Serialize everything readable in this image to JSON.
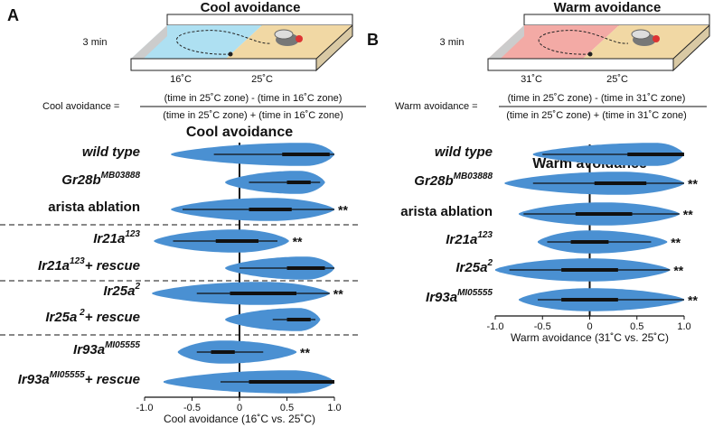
{
  "chart_data": [
    {
      "type": "violin",
      "panel": "A",
      "diagram": {
        "title": "Cool avoidance",
        "duration": "3 min",
        "zones": [
          "16˚C",
          "25˚C"
        ]
      },
      "formula": {
        "lhs": "Cool avoidance =",
        "numerator": "(time in 25˚C zone) - (time in 16˚C zone)",
        "denominator": "(time in 25˚C zone) + (time in 16˚C zone)"
      },
      "title": "Cool avoidance",
      "xlabel": "Cool avoidance (16˚C vs. 25˚C)",
      "categories": [
        [
          "wild type"
        ],
        [
          "Gr28b",
          "MB03888"
        ],
        [
          "arista ablation"
        ],
        [
          "Ir21a",
          "123"
        ],
        [
          "Ir21a",
          "123",
          "+ rescue"
        ],
        [
          "Ir25a",
          "2"
        ],
        [
          "Ir25a",
          " 2",
          "+ rescue"
        ],
        [
          "Ir93a",
          "MI05555"
        ],
        [
          "Ir93a",
          "MI05555",
          "+ rescue"
        ]
      ],
      "category_italic": [
        true,
        true,
        false,
        true,
        true,
        true,
        true,
        true,
        true
      ],
      "annotations": [
        null,
        null,
        "**",
        "**",
        null,
        "**",
        null,
        "**",
        null
      ],
      "color": "#4a90d2",
      "violins": [
        {
          "min": -0.72,
          "whisker_low": -0.27,
          "q1": 0.45,
          "q3": 0.95,
          "whisker_high": 1.0,
          "max": 1.0
        },
        {
          "min": -0.15,
          "whisker_low": 0.1,
          "q1": 0.5,
          "q3": 0.75,
          "whisker_high": 0.85,
          "max": 0.9
        },
        {
          "min": -0.72,
          "whisker_low": -0.6,
          "q1": 0.1,
          "q3": 0.55,
          "whisker_high": 1.0,
          "max": 1.0
        },
        {
          "min": -0.9,
          "whisker_low": -0.7,
          "q1": -0.25,
          "q3": 0.2,
          "whisker_high": 0.4,
          "max": 0.52
        },
        {
          "min": -0.15,
          "whisker_low": 0.0,
          "q1": 0.5,
          "q3": 0.9,
          "whisker_high": 1.0,
          "max": 1.0
        },
        {
          "min": -0.92,
          "whisker_low": -0.45,
          "q1": -0.1,
          "q3": 0.6,
          "whisker_high": 0.95,
          "max": 0.95
        },
        {
          "min": -0.15,
          "whisker_low": 0.35,
          "q1": 0.5,
          "q3": 0.75,
          "whisker_high": 0.8,
          "max": 0.85
        },
        {
          "min": -0.65,
          "whisker_low": -0.45,
          "q1": -0.3,
          "q3": -0.05,
          "whisker_high": 0.25,
          "max": 0.6
        },
        {
          "min": -0.8,
          "whisker_low": -0.2,
          "q1": 0.1,
          "q3": 1.0,
          "whisker_high": 1.0,
          "max": 1.0
        }
      ],
      "xlim": [
        -1,
        1
      ],
      "xticks": [
        {
          "value": -1,
          "label": "-1.0"
        },
        -0.5,
        0,
        0.5,
        {
          "value": 1,
          "label": "1.0"
        }
      ]
    },
    {
      "type": "violin",
      "panel": "B",
      "diagram": {
        "title": "Warm avoidance",
        "duration": "3 min",
        "zones": [
          "31˚C",
          "25˚C"
        ]
      },
      "formula": {
        "lhs": "Warm avoidance =",
        "numerator": "(time in 25˚C zone) - (time in 31˚C zone)",
        "denominator": "(time in 25˚C zone) + (time in 31˚C zone)"
      },
      "title": "Warm avoidance",
      "xlabel": "Warm avoidance (31˚C vs. 25˚C)",
      "categories": [
        [
          "wild type"
        ],
        [
          "Gr28b",
          "MB03888"
        ],
        [
          "arista ablation"
        ],
        [
          "Ir21a",
          "123"
        ],
        [
          "Ir25a",
          "2"
        ],
        [
          "Ir93a",
          "MI05555"
        ]
      ],
      "category_italic": [
        true,
        true,
        false,
        true,
        true,
        true
      ],
      "annotations": [
        null,
        "**",
        "**",
        "**",
        "**",
        "**"
      ],
      "color": "#4a90d2",
      "violins": [
        {
          "min": -0.6,
          "whisker_low": -0.5,
          "q1": 0.4,
          "q3": 1.0,
          "whisker_high": 1.0,
          "max": 1.0
        },
        {
          "min": -0.9,
          "whisker_low": -0.6,
          "q1": 0.05,
          "q3": 0.6,
          "whisker_high": 1.0,
          "max": 1.0
        },
        {
          "min": -0.75,
          "whisker_low": -0.7,
          "q1": -0.15,
          "q3": 0.45,
          "whisker_high": 0.95,
          "max": 0.95
        },
        {
          "min": -0.55,
          "whisker_low": -0.45,
          "q1": -0.2,
          "q3": 0.2,
          "whisker_high": 0.65,
          "max": 0.82
        },
        {
          "min": -1.0,
          "whisker_low": -0.85,
          "q1": -0.3,
          "q3": 0.3,
          "whisker_high": 0.85,
          "max": 0.85
        },
        {
          "min": -0.75,
          "whisker_low": -0.55,
          "q1": -0.3,
          "q3": 0.3,
          "whisker_high": 1.0,
          "max": 1.0
        }
      ],
      "xlim": [
        -1,
        1
      ],
      "xticks": [
        {
          "value": -1,
          "label": "-1.0"
        },
        -0.5,
        0,
        0.5,
        {
          "value": 1,
          "label": "1.0"
        }
      ]
    }
  ]
}
